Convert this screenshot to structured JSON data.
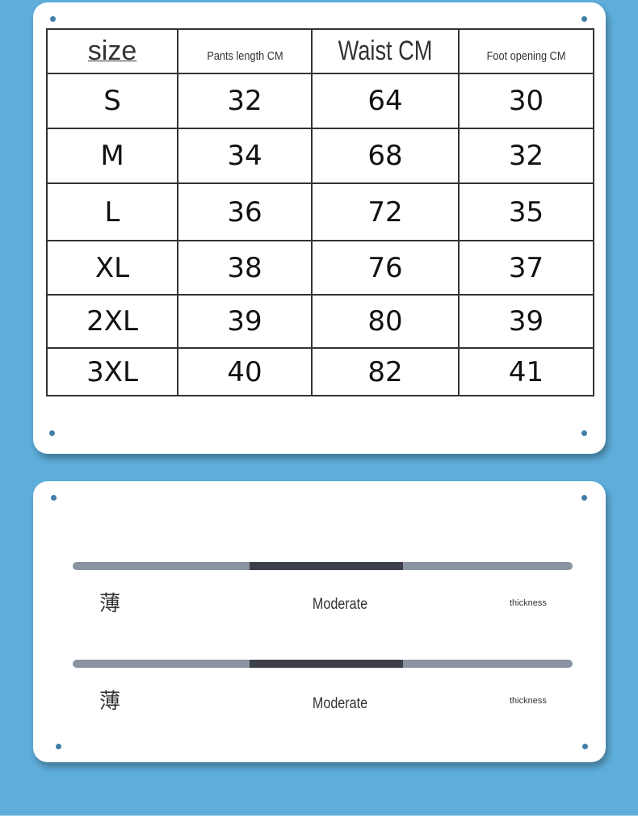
{
  "size_table": {
    "headers": [
      "size",
      "Pants length CM",
      "Waist CM",
      "Foot opening CM"
    ],
    "rows": [
      [
        "S",
        "32",
        "64",
        "30"
      ],
      [
        "M",
        "34",
        "68",
        "32"
      ],
      [
        "L",
        "36",
        "72",
        "35"
      ],
      [
        "XL",
        "38",
        "76",
        "37"
      ],
      [
        "2XL",
        "39",
        "80",
        "39"
      ],
      [
        "3XL",
        "40",
        "82",
        "41"
      ]
    ]
  },
  "scales": [
    {
      "left": "薄",
      "middle": "Moderate",
      "right": "thickness",
      "level": "middle"
    },
    {
      "left": "薄",
      "middle": "Moderate",
      "right": "thickness",
      "level": "middle"
    }
  ],
  "colors": {
    "background": "#5eadda",
    "card": "#ffffff",
    "bar": "#8a93a1",
    "bar_fill": "#3d3f4a"
  }
}
